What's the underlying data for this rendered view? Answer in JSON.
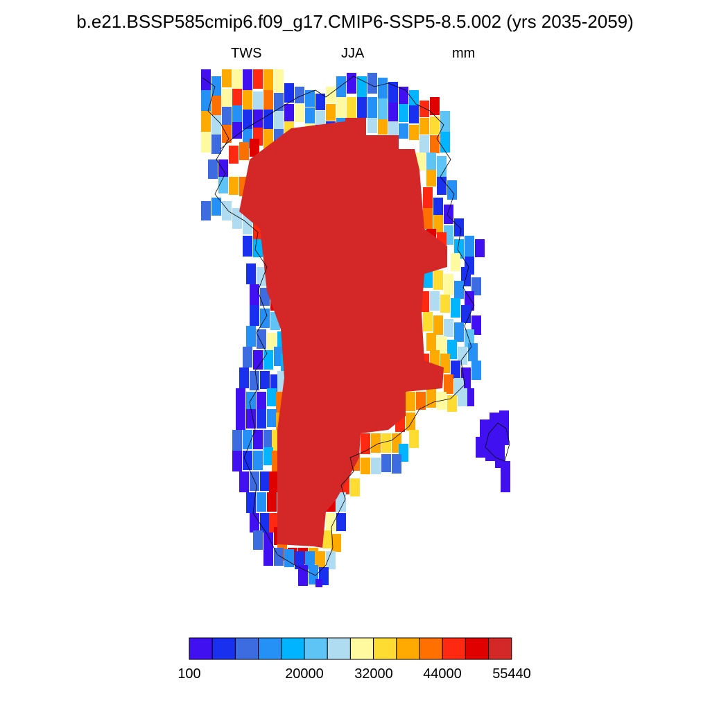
{
  "title": "b.e21.BSSP585cmip6.f09_g17.CMIP6-SSP5-8.5.002 (yrs 2035-2059)",
  "subtitle_left": "TWS",
  "subtitle_center": "JJA",
  "subtitle_right": "mm",
  "colorbar": {
    "colors": [
      "#4010f0",
      "#1a30ef",
      "#3c6ce0",
      "#2590f5",
      "#00b4ff",
      "#5ec4f5",
      "#b0dcf2",
      "#fff9a0",
      "#ffdc32",
      "#ffaa00",
      "#ff7000",
      "#ff2810",
      "#e00000",
      "#d42828"
    ],
    "tick_labels": [
      "100",
      "20000",
      "32000",
      "44000",
      "55440"
    ]
  }
}
